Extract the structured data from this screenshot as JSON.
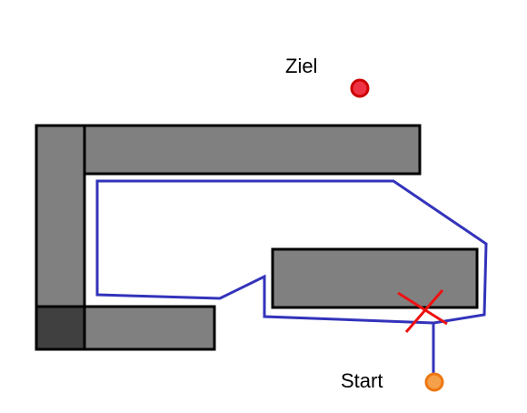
{
  "labels": {
    "goal": "Ziel",
    "start": "Start"
  },
  "colors": {
    "obstacle_fill": "#808080",
    "obstacle_dark_fill": "#404040",
    "obstacle_stroke": "#000000",
    "path": "#3333bb",
    "goal_fill": "#ee3344",
    "goal_stroke": "#cc0000",
    "start_fill": "#f5a04a",
    "start_stroke": "#ee7711",
    "cross": "#ee1111"
  },
  "markers": {
    "goal": "goal-point",
    "start": "start-point",
    "cross": "cross-mark"
  }
}
